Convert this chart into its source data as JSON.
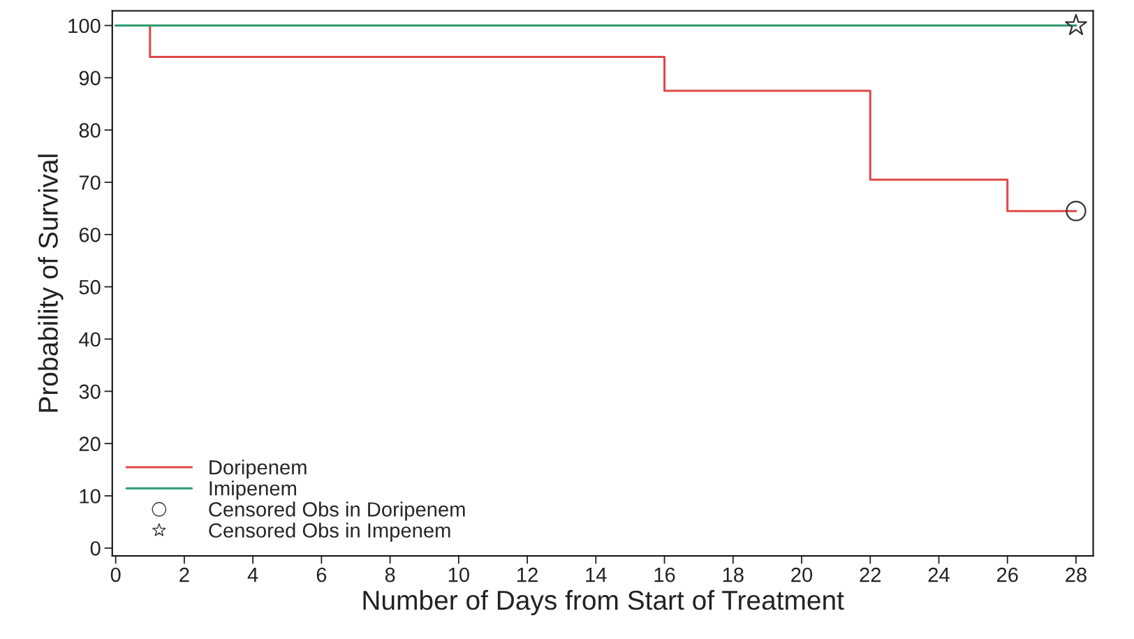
{
  "chart_data": {
    "type": "step",
    "xlabel": "Number of Days from Start of Treatment",
    "ylabel": "Probability of Survival",
    "xlim": [
      -0.1,
      28.5
    ],
    "ylim": [
      -1.5,
      102.8
    ],
    "xticks": [
      0,
      2,
      4,
      6,
      8,
      10,
      12,
      14,
      16,
      18,
      20,
      22,
      24,
      26,
      28
    ],
    "yticks": [
      0,
      10,
      20,
      30,
      40,
      50,
      60,
      70,
      80,
      90,
      100
    ],
    "grid": false,
    "legend": "bottom left",
    "series": [
      {
        "name": "Doripenem",
        "color": "#e04848",
        "x": [
          0,
          1,
          16,
          22,
          26,
          28
        ],
        "values": [
          100,
          94,
          87.5,
          70.5,
          64.5,
          64.5
        ],
        "marker": "none"
      },
      {
        "name": "Imipenem",
        "color": "#2f9a6e",
        "x": [
          0,
          28
        ],
        "values": [
          100,
          100
        ],
        "marker": "none"
      },
      {
        "name": "Censored Obs in Doripenem",
        "type": "scatter",
        "color": "#333333",
        "x": [
          28
        ],
        "values": [
          64.5
        ],
        "marker": "circle"
      },
      {
        "name": "Censored Obs in Impenem",
        "type": "scatter",
        "color": "#333333",
        "x": [
          28
        ],
        "values": [
          100
        ],
        "marker": "star"
      }
    ]
  }
}
